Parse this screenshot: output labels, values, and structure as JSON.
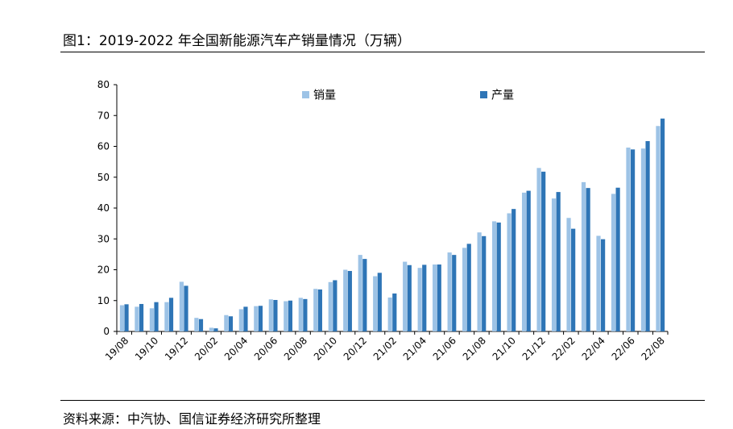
{
  "header": {
    "title": "图1：2019-2022 年全国新能源汽车产销量情况（万辆）"
  },
  "footer": {
    "source": "资料来源：中汽协、国信证券经济研究所整理"
  },
  "chart_data": {
    "type": "bar",
    "title": "",
    "xlabel": "",
    "ylabel": "",
    "ylim": [
      0,
      80
    ],
    "yticks": [
      0,
      10,
      20,
      30,
      40,
      50,
      60,
      70,
      80
    ],
    "grid": false,
    "legend": "top",
    "categories": [
      "19/08",
      "19/09",
      "19/10",
      "19/11",
      "19/12",
      "20/01",
      "20/02",
      "20/03",
      "20/04",
      "20/05",
      "20/06",
      "20/07",
      "20/08",
      "20/09",
      "20/10",
      "20/11",
      "20/12",
      "21/01",
      "21/02",
      "21/03",
      "21/04",
      "21/05",
      "21/06",
      "21/07",
      "21/08",
      "21/09",
      "21/10",
      "21/11",
      "21/12",
      "22/01",
      "22/02",
      "22/03",
      "22/04",
      "22/05",
      "22/06",
      "22/07",
      "22/08"
    ],
    "tick_labels": [
      "19/08",
      "19/10",
      "19/12",
      "20/02",
      "20/04",
      "20/06",
      "20/08",
      "20/10",
      "20/12",
      "21/02",
      "21/04",
      "21/06",
      "21/08",
      "21/10",
      "21/12",
      "22/02",
      "22/04",
      "22/06",
      "22/08"
    ],
    "series": [
      {
        "name": "销量",
        "color": "#9dc3e6",
        "values": [
          8.5,
          8.0,
          7.5,
          9.5,
          16.1,
          4.4,
          1.2,
          5.3,
          7.2,
          8.2,
          10.4,
          9.8,
          10.9,
          13.8,
          16.0,
          20.0,
          24.8,
          17.9,
          11.0,
          22.6,
          20.6,
          21.7,
          25.6,
          27.1,
          32.1,
          35.7,
          38.3,
          45.0,
          53.0,
          43.1,
          36.8,
          48.4,
          31.0,
          44.6,
          59.6,
          59.3,
          66.6
        ]
      },
      {
        "name": "产量",
        "color": "#2e75b6",
        "values": [
          8.8,
          8.9,
          9.5,
          10.9,
          14.8,
          4.0,
          1.0,
          4.9,
          8.0,
          8.3,
          10.2,
          10.0,
          10.5,
          13.6,
          16.6,
          19.6,
          23.5,
          19.0,
          12.3,
          21.5,
          21.6,
          21.7,
          24.8,
          28.4,
          30.9,
          35.3,
          39.7,
          45.6,
          51.8,
          45.2,
          33.3,
          46.5,
          29.9,
          46.6,
          59.0,
          61.7,
          69.0
        ]
      }
    ]
  }
}
